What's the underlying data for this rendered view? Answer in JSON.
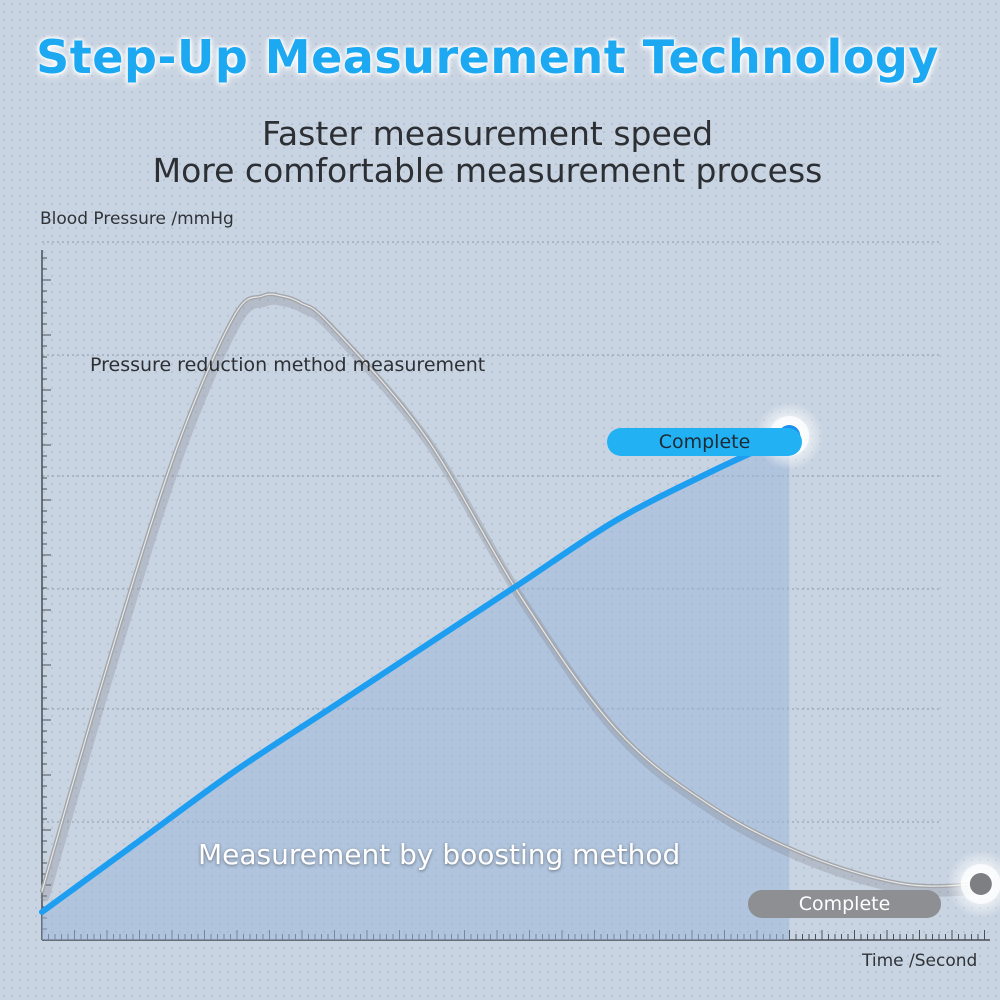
{
  "title": "Step-Up Measurement Technology",
  "subtitle_lines": [
    "Faster measurement speed",
    "More comfortable measurement process"
  ],
  "colors": {
    "accent": "#1da8f2",
    "boost_line": "#1e9ef0",
    "reduction_line": "#a3a6aa",
    "background": "#c9d4e2"
  },
  "chart_data": {
    "type": "line",
    "title": "Step-Up Measurement Technology",
    "ylabel": "Blood Pressure /mmHg",
    "xlabel": "Time /Second",
    "xlim": [
      0,
      100
    ],
    "ylim": [
      0,
      100
    ],
    "grid": true,
    "series": [
      {
        "name": "Pressure reduction method measurement",
        "x": [
          0,
          7,
          14,
          20,
          23,
          25,
          27,
          30,
          40,
          50,
          60,
          70,
          80,
          90,
          98
        ],
        "y": [
          7,
          40,
          70,
          89,
          92,
          92,
          91,
          88,
          72,
          49,
          30,
          19,
          12,
          8,
          8
        ],
        "end_label": "Complete"
      },
      {
        "name": "Measurement by boosting method",
        "x": [
          0,
          10,
          20,
          30,
          40,
          50,
          60,
          70,
          78
        ],
        "y": [
          4,
          14,
          24,
          33,
          42,
          51,
          60,
          67,
          72
        ],
        "end_label": "Complete"
      }
    ]
  }
}
